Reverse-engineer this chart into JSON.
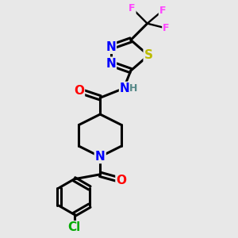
{
  "background_color": "#e8e8e8",
  "bond_color": "#000000",
  "bond_width": 2.2,
  "atom_colors": {
    "N": "#0000ff",
    "O": "#ff0000",
    "S": "#bbbb00",
    "Cl": "#00aa00",
    "F": "#ff44ff",
    "H": "#558888"
  },
  "font_size": 11,
  "font_size_small": 9,
  "figsize": [
    3.0,
    3.0
  ],
  "dpi": 100
}
